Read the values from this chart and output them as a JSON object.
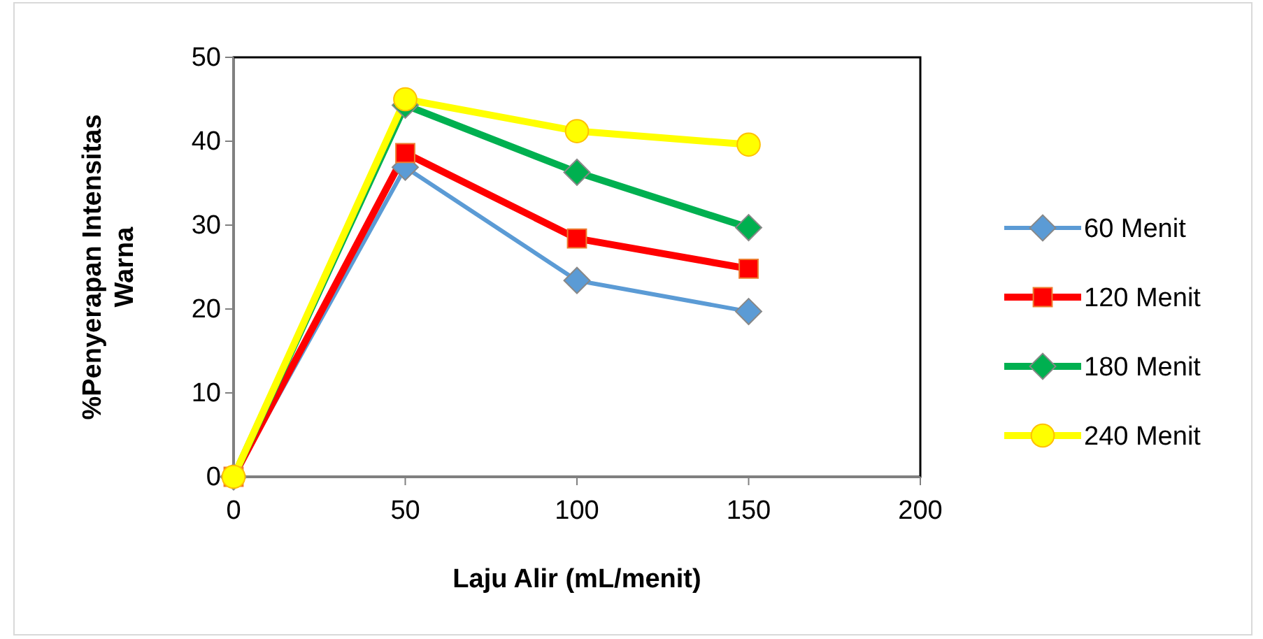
{
  "chart_data": {
    "type": "line",
    "xlabel": "Laju Alir (mL/menit)",
    "ylabel": "%Penyerapan Intensitas Warna",
    "x": [
      0,
      50,
      100,
      150
    ],
    "xlim": [
      0,
      200
    ],
    "xticks": [
      0,
      50,
      100,
      150,
      200
    ],
    "ylim": [
      0,
      50
    ],
    "yticks": [
      0,
      10,
      20,
      30,
      40,
      50
    ],
    "grid": false,
    "legend": "right",
    "series": [
      {
        "name": "60 Menit",
        "color": "#5b9bd5",
        "marker": "diamond",
        "values": [
          0,
          36.9,
          23.4,
          19.7
        ]
      },
      {
        "name": "120 Menit",
        "color": "#ff0000",
        "marker": "square",
        "values": [
          0,
          38.6,
          28.4,
          24.8
        ]
      },
      {
        "name": "180 Menit",
        "color": "#00b050",
        "marker": "diamond",
        "values": [
          0,
          44.3,
          36.3,
          29.7
        ]
      },
      {
        "name": "240 Menit",
        "color": "#ffff00",
        "marker": "circle",
        "values": [
          0,
          45.0,
          41.2,
          39.6
        ]
      }
    ]
  }
}
